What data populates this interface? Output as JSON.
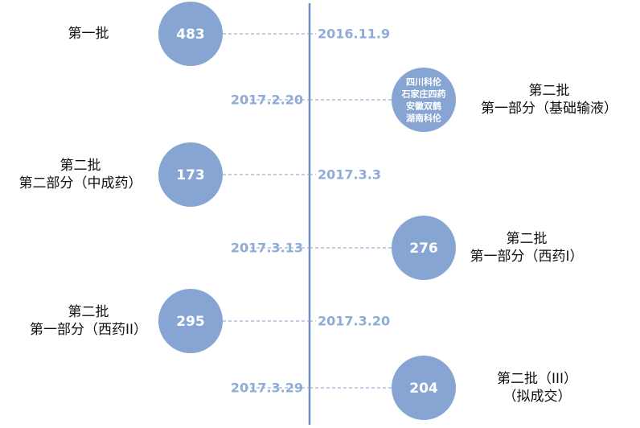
{
  "events": [
    {
      "date": "2016.11.9",
      "circle": [
        483
      ],
      "label": [
        "第一批"
      ]
    },
    {
      "date": "2017.2.20",
      "circle": [
        "四川科伦",
        "石家庄四药",
        "安徽双鹤",
        "湖南科伦"
      ],
      "label": [
        "第二批",
        "第一部分（基础输液）"
      ]
    },
    {
      "date": "2017.3.3",
      "circle": [
        173
      ],
      "label": [
        "第二批",
        "第二部分（中成药）"
      ]
    },
    {
      "date": "2017.3.13",
      "circle": [
        276
      ],
      "label": [
        "第二批",
        "第一部分（西药I）"
      ]
    },
    {
      "date": "2017.3.20",
      "circle": [
        295
      ],
      "label": [
        "第二批",
        "第一部分（西药II）"
      ]
    },
    {
      "date": "2017.3.29",
      "circle": [
        204
      ],
      "label": [
        "第二批（III）",
        "（拟成交）"
      ]
    }
  ]
}
